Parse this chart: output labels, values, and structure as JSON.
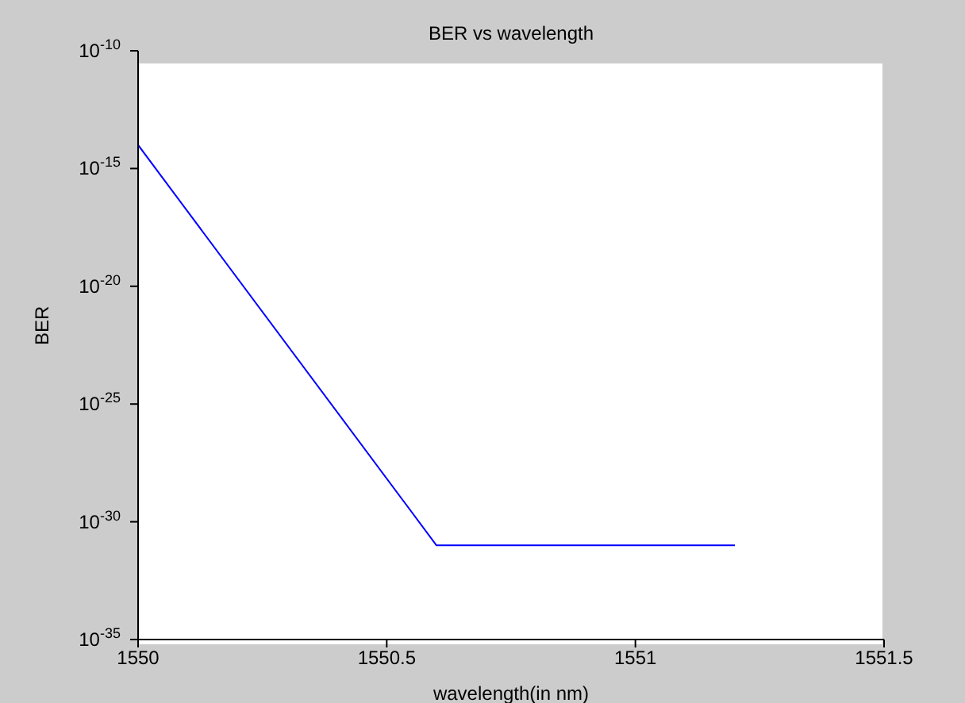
{
  "chart_data": {
    "type": "line",
    "title": "BER vs wavelength",
    "xlabel": "wavelength(in nm)",
    "ylabel": "BER",
    "x": [
      1550,
      1550.6,
      1551.2
    ],
    "series": [
      {
        "color": "#0000ff",
        "values": [
          1e-14,
          1e-31,
          1e-31
        ]
      }
    ],
    "xlim": [
      1550,
      1551.5
    ],
    "xticks": [
      1550,
      1550.5,
      1551,
      1551.5
    ],
    "ylim": [
      1e-35,
      1e-10
    ],
    "yticks": [
      {
        "value": 1e-35,
        "label": "10$^{-35}$"
      },
      {
        "value": 1e-30,
        "label": "10$^{-30}$"
      },
      {
        "value": 1e-25,
        "label": "10$^{-25}$"
      },
      {
        "value": 1e-20,
        "label": "10$^{-20}$"
      },
      {
        "value": 1e-15,
        "label": "10$^{-15}$"
      },
      {
        "value": 1e-10,
        "label": "10$^{-10}$"
      }
    ],
    "log": "y",
    "grid": false,
    "legend": false,
    "marker": "none",
    "line_style": "solid"
  }
}
